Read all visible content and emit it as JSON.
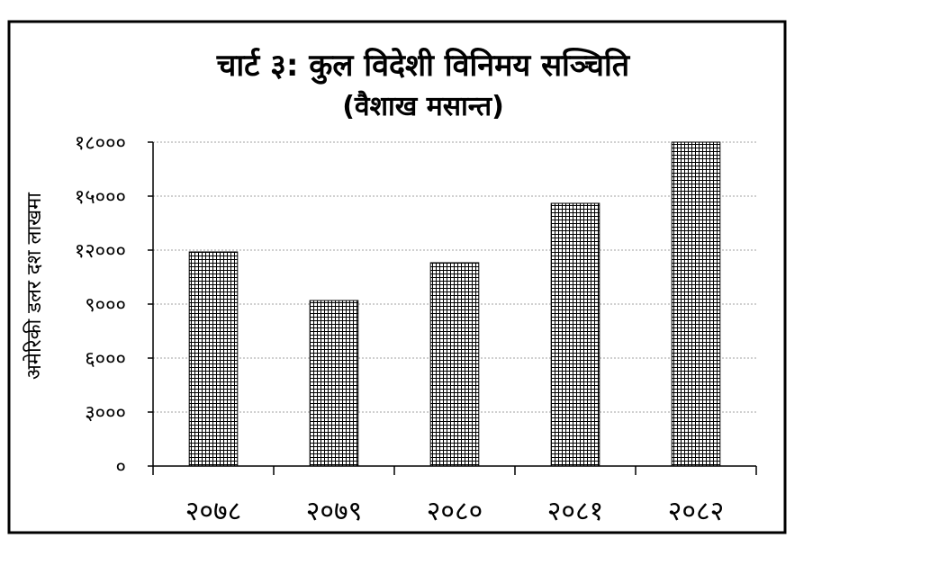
{
  "chart_data": {
    "type": "bar",
    "title": "चार्ट ३: कुल विदेशी विनिमय सञ्चिति",
    "subtitle": "(वैशाख मसान्त)",
    "ylabel": "अमेरिकी डलर दश लाखमा",
    "xlabel": "",
    "categories": [
      "२०७८",
      "२०७९",
      "२०८०",
      "२०८१",
      "२०८२"
    ],
    "values": [
      11900,
      9200,
      11300,
      14600,
      18000
    ],
    "ylim": [
      0,
      18000
    ],
    "yticks": [
      0,
      3000,
      6000,
      9000,
      12000,
      15000,
      18000
    ],
    "ytick_labels": [
      "०",
      "३०००",
      "६०००",
      "९०००",
      "१२०००",
      "१५०००",
      "१८०००"
    ],
    "grid": true,
    "legend": "none",
    "colors": {
      "bar_fill": "#ffffff",
      "bar_pattern": "#000000",
      "grid": "#a0a0a0",
      "axis": "#000000"
    }
  }
}
